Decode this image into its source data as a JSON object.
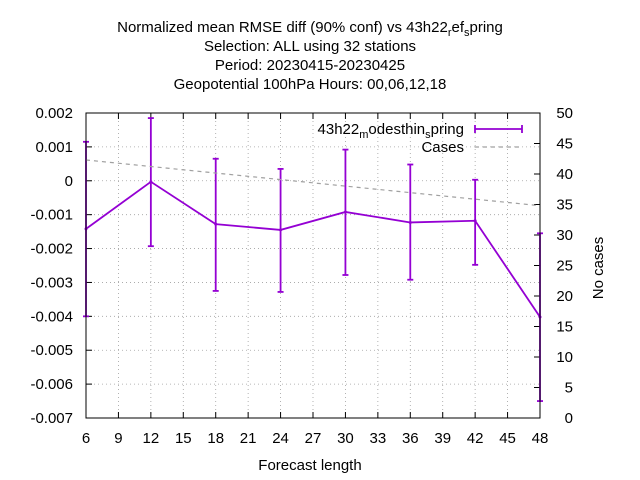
{
  "chart_data": {
    "type": "line",
    "title_lines": [
      {
        "parts": [
          {
            "t": "Normalized mean RMSE diff (90% conf) vs 43h22"
          },
          {
            "t": "r",
            "sub": true
          },
          {
            "t": "ef"
          },
          {
            "t": "s",
            "sub": true
          },
          {
            "t": "pring"
          }
        ]
      },
      {
        "parts": [
          {
            "t": "Selection: ALL using    32 stations"
          }
        ]
      },
      {
        "parts": [
          {
            "t": "Period: 20230415-20230425"
          }
        ]
      },
      {
        "parts": [
          {
            "t": "Geopotential 100hPa   Hours:  00,06,12,18"
          }
        ]
      }
    ],
    "xlabel": "Forecast length",
    "ylabel": "",
    "y2label": "No cases",
    "xlim": [
      6,
      48
    ],
    "ylim": [
      -0.007,
      0.002
    ],
    "y2lim": [
      0,
      50
    ],
    "xticks": [
      6,
      9,
      12,
      15,
      18,
      21,
      24,
      27,
      30,
      33,
      36,
      39,
      42,
      45,
      48
    ],
    "yticks": [
      "0.002",
      "0.001",
      "0",
      "-0.001",
      "-0.002",
      "-0.003",
      "-0.004",
      "-0.005",
      "-0.006",
      "-0.007"
    ],
    "y2ticks": [
      0,
      5,
      10,
      15,
      20,
      25,
      30,
      35,
      40,
      45,
      50
    ],
    "grid": true,
    "legend_position": "top-right",
    "series": [
      {
        "legend_parts": [
          {
            "t": "43h22"
          },
          {
            "t": "m",
            "sub": true
          },
          {
            "t": "odesthin"
          },
          {
            "t": "s",
            "sub": true
          },
          {
            "t": "pring"
          }
        ],
        "color": "#9400d3",
        "axis": "y",
        "x": [
          6,
          12,
          18,
          24,
          30,
          36,
          42,
          48
        ],
        "values": [
          -0.00142,
          -3e-05,
          -0.00128,
          -0.00145,
          -0.00092,
          -0.00123,
          -0.00118,
          -0.00402
        ],
        "err_low": [
          -0.004,
          -0.00193,
          -0.00325,
          -0.00328,
          -0.00278,
          -0.00292,
          -0.00248,
          -0.0065
        ],
        "err_high": [
          0.00115,
          0.00185,
          0.00065,
          0.00035,
          0.00092,
          0.00048,
          3e-05,
          -0.00155
        ]
      },
      {
        "legend_parts": [
          {
            "t": "Cases"
          }
        ],
        "color": "#a0a0a0",
        "axis": "y2",
        "dashed": true,
        "x": [
          6,
          48
        ],
        "values": [
          42.3,
          34.8
        ]
      }
    ]
  }
}
